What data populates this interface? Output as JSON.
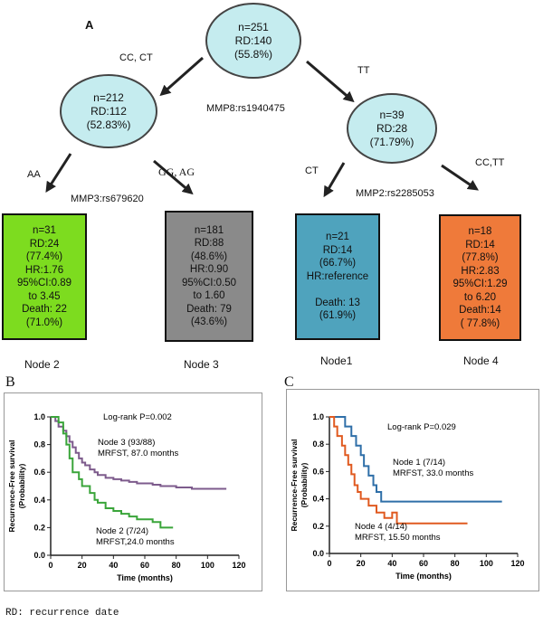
{
  "tree": {
    "panel_label": "A",
    "root": {
      "lines": [
        "n=251",
        "RD:140",
        "(55.8%)"
      ],
      "fill": "#c5ecef"
    },
    "left": {
      "lines": [
        "n=212",
        "RD:112",
        "(52.83%)"
      ],
      "fill": "#c5ecef"
    },
    "right": {
      "lines": [
        "n=39",
        "RD:28",
        "(71.79%)"
      ],
      "fill": "#c5ecef"
    },
    "labels": {
      "cc_ct": "CC, CT",
      "tt": "TT",
      "mmp8": "MMP8:rs1940475",
      "aa": "AA",
      "gg_ag": "GG, AG",
      "mmp3": "MMP3:rs679620",
      "ct": "CT",
      "cc_tt": "CC,TT",
      "mmp2": "MMP2:rs2285053"
    },
    "leaves": [
      {
        "id": "node2",
        "lines": [
          "n=31",
          "RD:24",
          "(77.4%)",
          "HR:1.76",
          "95%CI:0.89",
          "to 3.45",
          "Death: 22",
          "(71.0%)"
        ],
        "fill": "#7ddc1f",
        "name": "Node 2"
      },
      {
        "id": "node3",
        "lines": [
          "n=181",
          "RD:88",
          "(48.6%)",
          "HR:0.90",
          "95%CI:0.50",
          "to 1.60",
          "Death: 79",
          "(43.6%)"
        ],
        "fill": "#8a8a8a",
        "name": "Node 3"
      },
      {
        "id": "node1",
        "lines": [
          "n=21",
          "RD:14",
          "(66.7%)",
          "HR:reference",
          "",
          "Death: 13",
          "(61.9%)"
        ],
        "fill": "#4fa3bd",
        "name": "Node1"
      },
      {
        "id": "node4",
        "lines": [
          "n=18",
          "RD:14",
          "(77.8%)",
          "HR:2.83",
          "95%CI:1.29",
          "to 6.20",
          "Death:14",
          "( 77.8%)"
        ],
        "fill": "#ef7a3a",
        "name": "Node 4"
      }
    ]
  },
  "chart_data": [
    {
      "type": "line",
      "panel_label": "B",
      "title": "",
      "xlabel": "Time (months)",
      "ylabel": [
        "Recurrence-Free survival",
        "(Probability)"
      ],
      "xlim": [
        0,
        120
      ],
      "ylim": [
        0,
        1.0
      ],
      "xticks": [
        "0",
        "20",
        "40",
        "60",
        "80",
        "100",
        "120"
      ],
      "yticks": [
        "0.0",
        "0.2",
        "0.4",
        "0.6",
        "0.8",
        "1.0"
      ],
      "annotation": "Log-rank P=0.002",
      "series": [
        {
          "name": "Node 3 (93/88)",
          "sub": "MRFST, 87.0 months",
          "color": "#7d5b8c",
          "x": [
            0,
            3,
            5,
            8,
            10,
            12,
            14,
            16,
            18,
            20,
            22,
            25,
            28,
            30,
            35,
            40,
            45,
            50,
            55,
            60,
            65,
            70,
            75,
            80,
            85,
            90,
            95,
            100,
            105,
            112
          ],
          "y": [
            1.0,
            0.97,
            0.93,
            0.9,
            0.86,
            0.82,
            0.78,
            0.74,
            0.7,
            0.67,
            0.65,
            0.62,
            0.6,
            0.58,
            0.56,
            0.55,
            0.54,
            0.53,
            0.52,
            0.52,
            0.51,
            0.5,
            0.5,
            0.49,
            0.49,
            0.48,
            0.48,
            0.48,
            0.48,
            0.48
          ]
        },
        {
          "name": "Node 2 (7/24)",
          "sub": "MRFST,24.0 months",
          "color": "#3aa53a",
          "x": [
            0,
            5,
            8,
            10,
            12,
            14,
            18,
            20,
            25,
            28,
            30,
            35,
            40,
            45,
            50,
            55,
            65,
            70,
            78
          ],
          "y": [
            1.0,
            0.96,
            0.88,
            0.8,
            0.7,
            0.6,
            0.55,
            0.5,
            0.45,
            0.4,
            0.38,
            0.34,
            0.32,
            0.3,
            0.28,
            0.26,
            0.24,
            0.2,
            0.2
          ]
        }
      ]
    },
    {
      "type": "line",
      "panel_label": "C",
      "title": "",
      "xlabel": "Time (months)",
      "ylabel": [
        "Recurrence-Free survival",
        "(Probability)"
      ],
      "xlim": [
        0,
        120
      ],
      "ylim": [
        0,
        1.0
      ],
      "xticks": [
        "0",
        "20",
        "40",
        "60",
        "80",
        "100",
        "120"
      ],
      "yticks": [
        "0.0",
        "0.2",
        "0.4",
        "0.6",
        "0.8",
        "1.0"
      ],
      "annotation": "Log-rank P=0.029",
      "series": [
        {
          "name": "Node 1 (7/14)",
          "sub": "MRFST, 33.0 months",
          "color": "#2f6fa8",
          "x": [
            0,
            5,
            10,
            14,
            17,
            20,
            22,
            25,
            28,
            30,
            33,
            40,
            50,
            60,
            80,
            100,
            110
          ],
          "y": [
            1.0,
            1.0,
            0.93,
            0.86,
            0.79,
            0.72,
            0.64,
            0.57,
            0.5,
            0.45,
            0.38,
            0.38,
            0.38,
            0.38,
            0.38,
            0.38,
            0.38
          ]
        },
        {
          "name": "Node 4 (4/14)",
          "sub": "MRFST, 15.50 months",
          "color": "#e05a20",
          "x": [
            0,
            3,
            5,
            8,
            10,
            12,
            14,
            16,
            18,
            20,
            25,
            30,
            35,
            40,
            43,
            45,
            50,
            60,
            70,
            88
          ],
          "y": [
            1.0,
            0.93,
            0.86,
            0.79,
            0.72,
            0.65,
            0.58,
            0.5,
            0.45,
            0.4,
            0.35,
            0.3,
            0.26,
            0.3,
            0.22,
            0.22,
            0.22,
            0.22,
            0.22,
            0.22
          ]
        }
      ]
    }
  ],
  "footnote": "RD: recurrence date"
}
